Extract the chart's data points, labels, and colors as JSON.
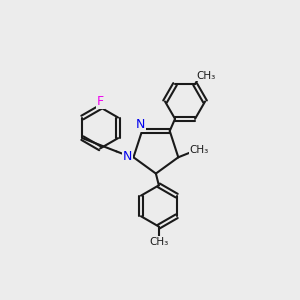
{
  "bg_color": "#ececec",
  "bond_color": "#1a1a1a",
  "bond_width": 1.5,
  "N_color": "#0000ee",
  "F_color": "#ee00ee",
  "figsize": [
    3.0,
    3.0
  ],
  "dpi": 100,
  "xlim": [
    0,
    10
  ],
  "ylim": [
    0,
    10
  ]
}
